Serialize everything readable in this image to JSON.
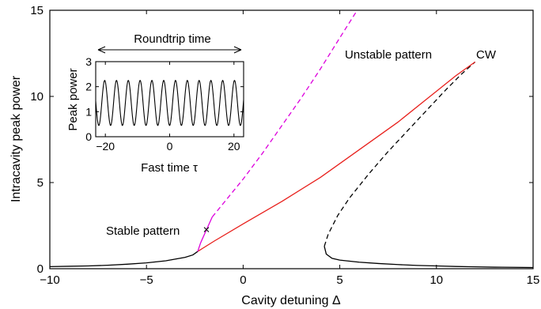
{
  "chart_data": [
    {
      "type": "line",
      "xlabel": "Cavity detuning Δ",
      "ylabel": "Intracavity peak power",
      "xlim": [
        -10,
        15
      ],
      "ylim": [
        0,
        15
      ],
      "xticks": [
        "−10",
        "−5",
        "0",
        "5",
        "10",
        "15"
      ],
      "xtick_values": [
        -10,
        -5,
        0,
        5,
        10,
        15
      ],
      "yticks": [
        "0",
        "5",
        "10",
        "15"
      ],
      "ytick_values": [
        0,
        5,
        10,
        15
      ],
      "grid": false,
      "series": [
        {
          "color": "#000000",
          "dash": "solid",
          "points": [
            [
              -10,
              0.12
            ],
            [
              -9,
              0.14
            ],
            [
              -8,
              0.16
            ],
            [
              -7,
              0.2
            ],
            [
              -6,
              0.26
            ],
            [
              -5,
              0.34
            ],
            [
              -4,
              0.46
            ],
            [
              -3,
              0.66
            ],
            [
              -2.6,
              0.8
            ],
            [
              -2.35,
              1.0
            ]
          ]
        },
        {
          "color": "#000000",
          "dash": "solid",
          "points": [
            [
              4.2,
              1.3
            ],
            [
              4.3,
              0.85
            ],
            [
              4.6,
              0.6
            ],
            [
              5,
              0.5
            ],
            [
              6,
              0.38
            ],
            [
              7,
              0.3
            ],
            [
              8,
              0.24
            ],
            [
              9,
              0.19
            ],
            [
              10,
              0.16
            ],
            [
              11,
              0.13
            ],
            [
              12,
              0.11
            ],
            [
              13,
              0.09
            ],
            [
              14,
              0.08
            ],
            [
              15,
              0.07
            ]
          ]
        },
        {
          "color": "#000000",
          "dash": "dashed",
          "points": [
            [
              4.2,
              1.3
            ],
            [
              4.4,
              2.0
            ],
            [
              4.9,
              3.1
            ],
            [
              5.5,
              4.1
            ],
            [
              6.5,
              5.5
            ],
            [
              7.5,
              6.8
            ],
            [
              8.5,
              8.0
            ],
            [
              9.5,
              9.2
            ],
            [
              10.5,
              10.4
            ],
            [
              11.3,
              11.3
            ],
            [
              12,
              12.0
            ]
          ]
        },
        {
          "color": "#e8201c",
          "dash": "solid",
          "points": [
            [
              -2.35,
              1.0
            ],
            [
              -1.5,
              1.6
            ],
            [
              0,
              2.6
            ],
            [
              2,
              3.9
            ],
            [
              4,
              5.3
            ],
            [
              6,
              6.9
            ],
            [
              8,
              8.5
            ],
            [
              10,
              10.3
            ],
            [
              11,
              11.2
            ],
            [
              12,
              12.0
            ]
          ]
        },
        {
          "color": "#dd00dd",
          "dash": "solid",
          "points": [
            [
              -2.35,
              1.0
            ],
            [
              -2.2,
              1.5
            ],
            [
              -2.0,
              2.0
            ],
            [
              -1.8,
              2.5
            ],
            [
              -1.6,
              3.0
            ]
          ]
        },
        {
          "color": "#dd00dd",
          "dash": "dashed",
          "points": [
            [
              -1.6,
              3.0
            ],
            [
              0,
              5.2
            ],
            [
              1,
              6.7
            ],
            [
              2,
              8.3
            ],
            [
              3,
              9.9
            ],
            [
              4,
              11.6
            ],
            [
              5,
              13.4
            ],
            [
              5.9,
              15.0
            ]
          ]
        }
      ],
      "markers": [
        {
          "label": "×",
          "x": -1.9,
          "y": 2.25
        }
      ],
      "annotations": {
        "stable": "Stable pattern",
        "unstable": "Unstable pattern",
        "cw": "CW"
      }
    },
    {
      "type": "line",
      "xlabel": "Fast time τ",
      "ylabel": "Peak power",
      "title": "Roundtrip time",
      "xlim": [
        -23,
        23
      ],
      "ylim": [
        0,
        3
      ],
      "xticks": [
        "−20",
        "0",
        "20"
      ],
      "xtick_values": [
        -20,
        0,
        20
      ],
      "yticks": [
        "0",
        "1",
        "2",
        "3"
      ],
      "ytick_values": [
        0,
        1,
        2,
        3
      ],
      "series": [
        {
          "color": "#000000",
          "dash": "solid",
          "function": {
            "kind": "cosine",
            "mean": 1.35,
            "amplitude": 0.9,
            "period": 3.67,
            "phase_x": -20.2
          }
        }
      ]
    }
  ]
}
